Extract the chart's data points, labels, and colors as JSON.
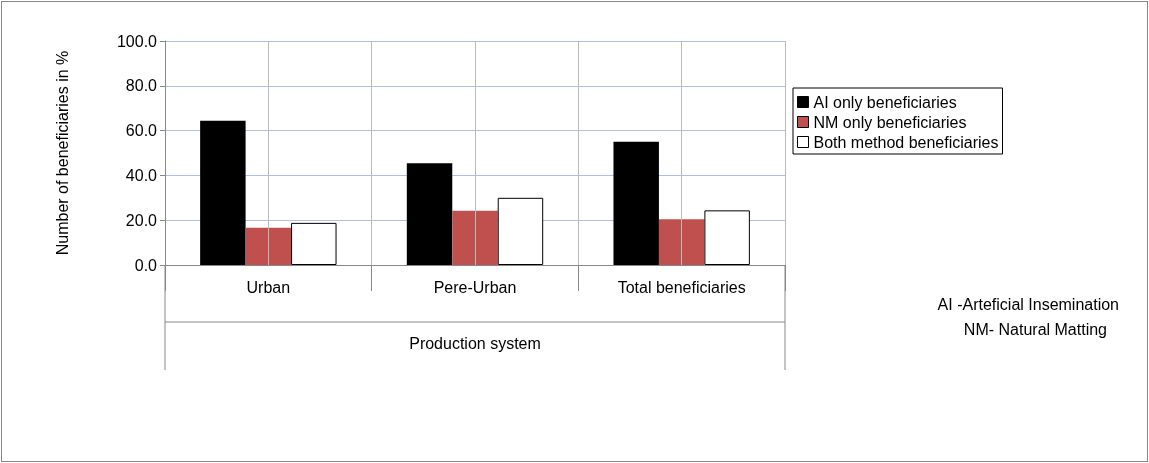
{
  "chart_data": {
    "type": "bar",
    "ylabel": "Number of beneficiaries in %",
    "xlabel": "Production system",
    "categories": [
      "Urban",
      "Pere-Urban",
      "Total beneficiaries"
    ],
    "series": [
      {
        "name": "AI only beneficiaries",
        "color": "#000000",
        "values": [
          64.4,
          45.4,
          55.0
        ]
      },
      {
        "name": "NM only beneficiaries",
        "color": "#c0504d",
        "values": [
          16.6,
          24.2,
          20.4
        ]
      },
      {
        "name": "Both method beneficiaries",
        "color": "#ffffff",
        "values": [
          18.8,
          30.0,
          24.4
        ]
      }
    ],
    "ylim": [
      0,
      100
    ],
    "yticks": [
      {
        "value": 0,
        "label": "0.0"
      },
      {
        "value": 20,
        "label": "20.0"
      },
      {
        "value": 40,
        "label": "40.0"
      },
      {
        "value": 60,
        "label": "60.0"
      },
      {
        "value": 80,
        "label": "80.0"
      },
      {
        "value": 100,
        "label": "100.0"
      }
    ],
    "grid": true,
    "legend": "top right",
    "annotations": [
      "AI -Arteficial Insemination",
      "NM- Natural Matting"
    ]
  }
}
